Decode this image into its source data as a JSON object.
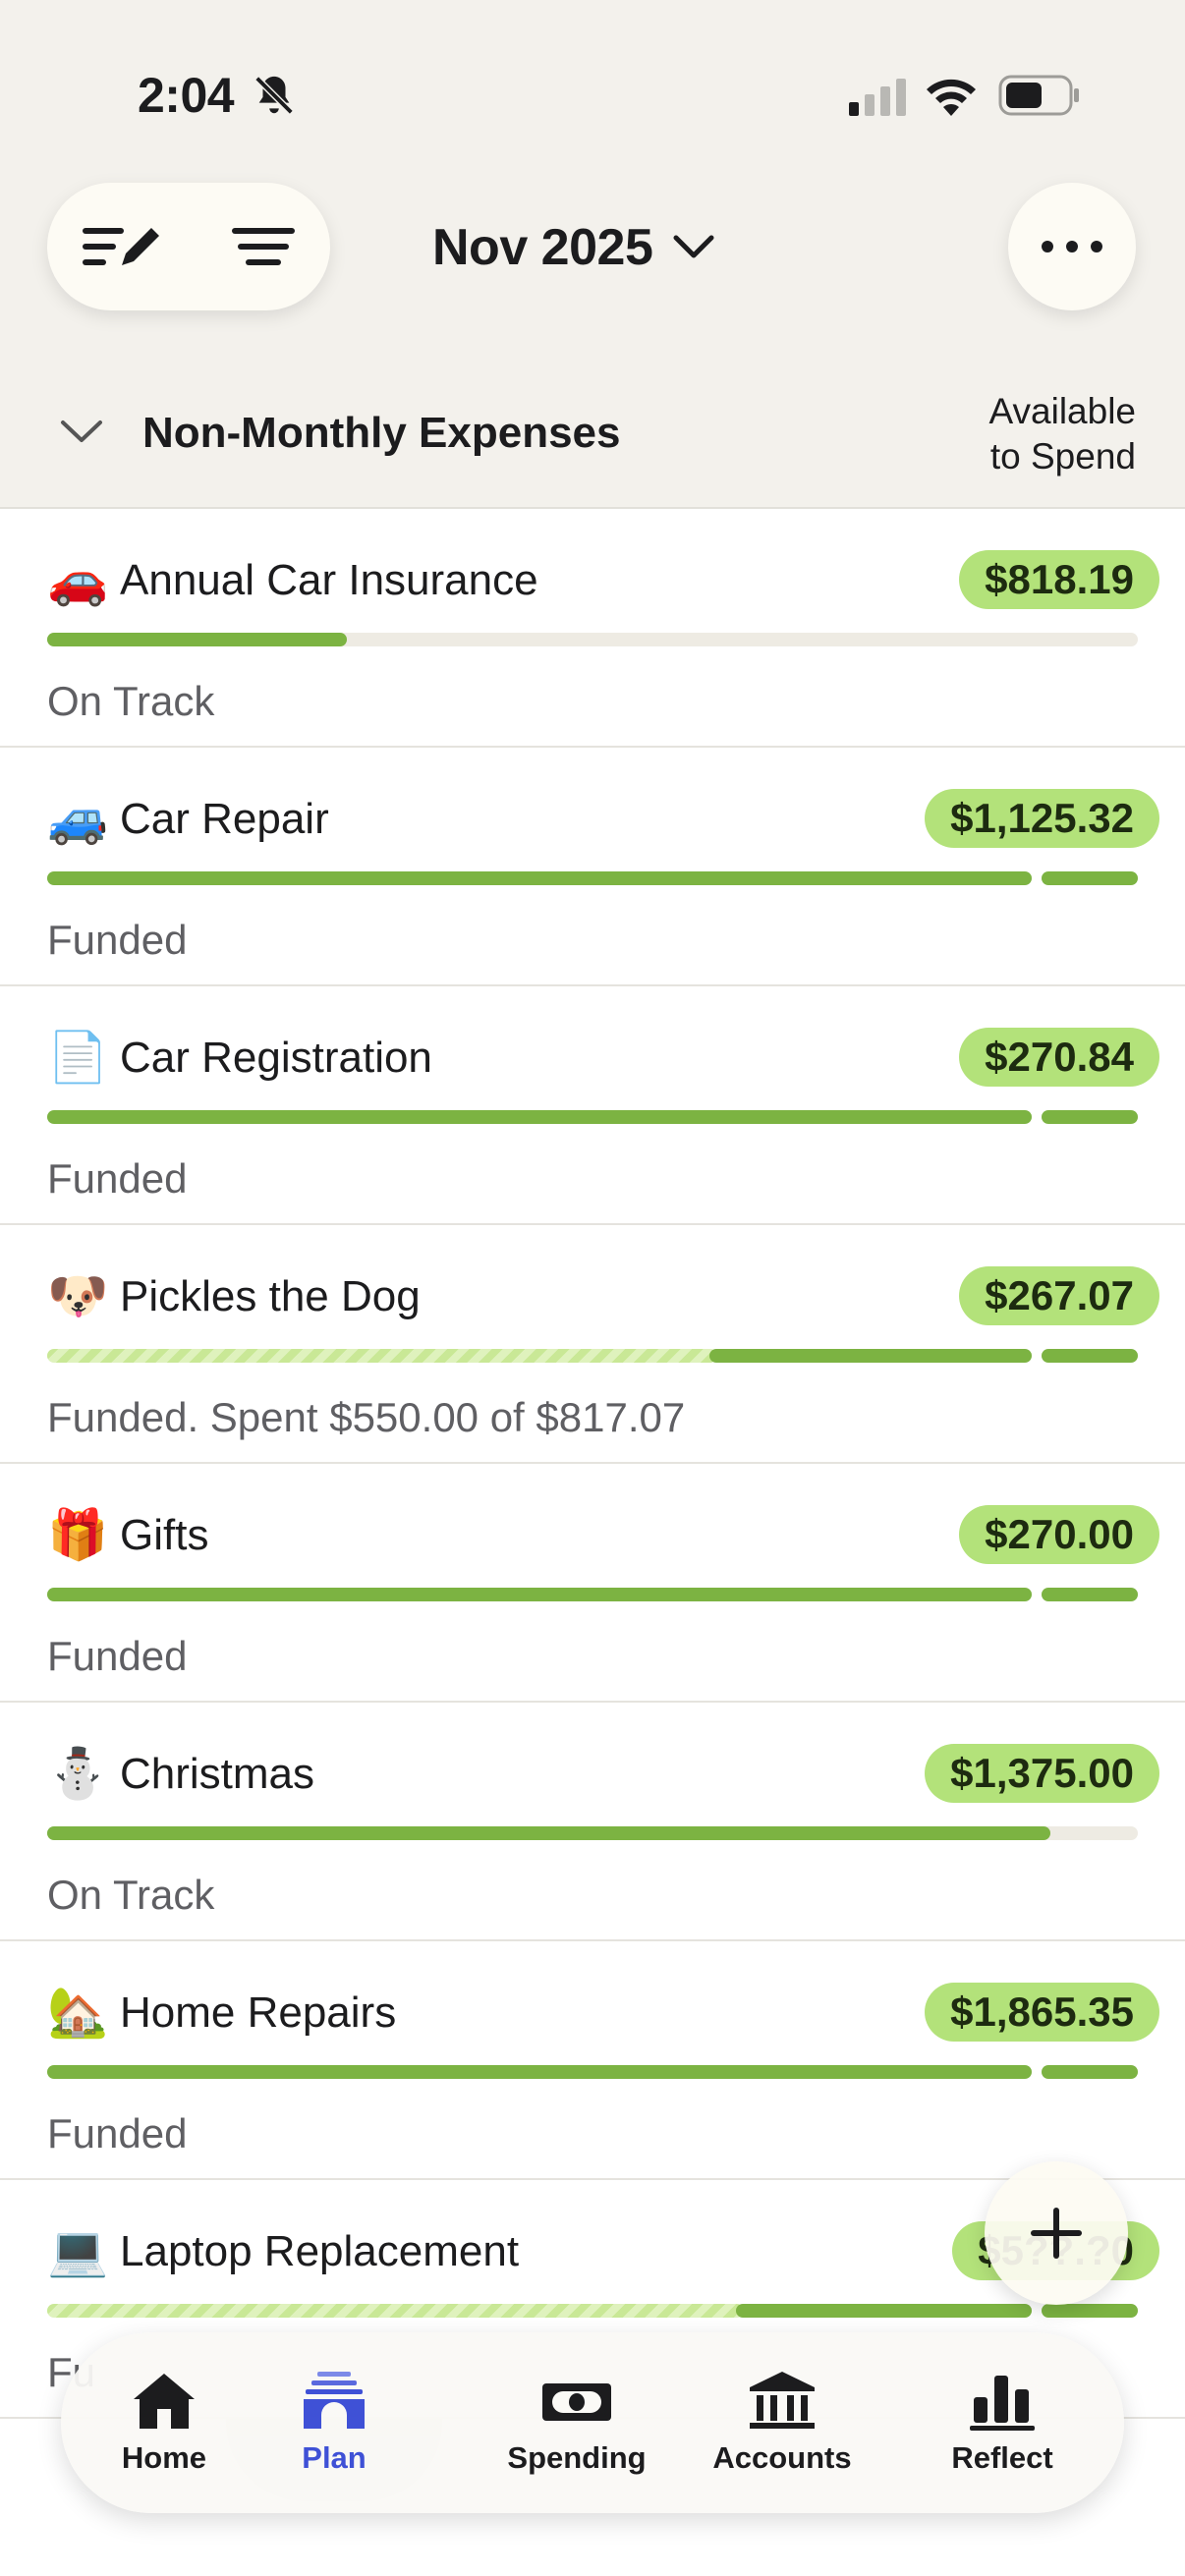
{
  "status_bar": {
    "time": "2:04"
  },
  "header": {
    "month_label": "Nov 2025"
  },
  "group": {
    "title": "Non-Monthly Expenses",
    "available_line1": "Available",
    "available_line2": "to Spend"
  },
  "rows": [
    {
      "emoji": "🚗",
      "name": "Annual Car Insurance",
      "amount": "$818.19",
      "status": "On Track",
      "progress": 0.275
    },
    {
      "emoji": "🚙",
      "name": "Car Repair",
      "amount": "$1,125.32",
      "status": "Funded",
      "progress": 1.0
    },
    {
      "emoji": "📄",
      "name": "Car Registration",
      "amount": "$270.84",
      "status": "Funded",
      "progress": 1.0
    },
    {
      "emoji": "🐶",
      "name": "Pickles the Dog",
      "amount": "$267.07",
      "status": "Funded. Spent $550.00 of $817.07",
      "progress": 1.0,
      "spent_fraction": 0.673
    },
    {
      "emoji": "🎁",
      "name": "Gifts",
      "amount": "$270.00",
      "status": "Funded",
      "progress": 1.0
    },
    {
      "emoji": "⛄",
      "name": "Christmas",
      "amount": "$1,375.00",
      "status": "On Track",
      "progress": 0.92
    },
    {
      "emoji": "🏡",
      "name": "Home Repairs",
      "amount": "$1,865.35",
      "status": "Funded",
      "progress": 1.0
    },
    {
      "emoji": "💻",
      "name": "Laptop Replacement",
      "amount": "$5??.?0",
      "status": "Fu",
      "progress": 1.0,
      "spent_fraction": 0.7
    }
  ],
  "tabbar": {
    "items": [
      {
        "label": "Home",
        "icon": "house-icon"
      },
      {
        "label": "Plan",
        "icon": "plan-icon",
        "active": true
      },
      {
        "label": "Spending",
        "icon": "banknote-icon"
      },
      {
        "label": "Accounts",
        "icon": "bank-icon"
      },
      {
        "label": "Reflect",
        "icon": "bar-chart-icon"
      }
    ]
  },
  "colors": {
    "accent": "#3f51d6",
    "fill": "#7cb342",
    "amount_pill": "#b3e27a",
    "header_bg": "#f3f1ec"
  }
}
